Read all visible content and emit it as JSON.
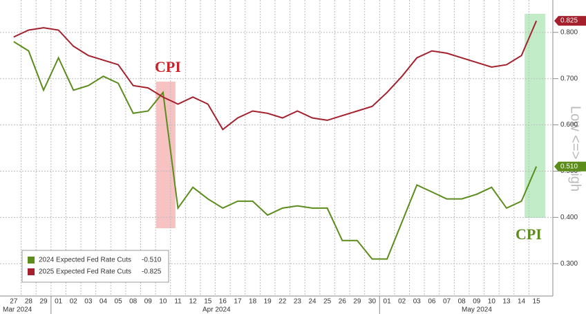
{
  "chart_data": {
    "type": "line",
    "categories": [
      "27",
      "28",
      "29",
      "01",
      "02",
      "03",
      "04",
      "05",
      "08",
      "09",
      "10",
      "11",
      "12",
      "15",
      "16",
      "17",
      "18",
      "19",
      "22",
      "23",
      "24",
      "25",
      "26",
      "29",
      "30",
      "01",
      "02",
      "03",
      "06",
      "07",
      "08",
      "09",
      "10",
      "13",
      "14",
      "15"
    ],
    "months": [
      "Mar 2024",
      "Apr 2024",
      "May 2024"
    ],
    "series": [
      {
        "name": "2024 Expected Fed Rate Cuts",
        "legend_value": "-0.510",
        "value_label": "0.510",
        "color": "#5b8c1c",
        "values": [
          0.78,
          0.76,
          0.675,
          0.745,
          0.675,
          0.685,
          0.705,
          0.69,
          0.625,
          0.63,
          0.67,
          0.42,
          0.465,
          0.44,
          0.42,
          0.435,
          0.435,
          0.405,
          0.42,
          0.425,
          0.42,
          0.42,
          0.35,
          0.35,
          0.31,
          0.31,
          0.39,
          0.47,
          0.455,
          0.44,
          0.44,
          0.45,
          0.465,
          0.42,
          0.435,
          0.51
        ]
      },
      {
        "name": "2025 Expected Fed Rate Cuts",
        "legend_value": "-0.825",
        "value_label": "0.825",
        "color": "#a3202c",
        "values": [
          0.79,
          0.805,
          0.81,
          0.805,
          0.77,
          0.75,
          0.74,
          0.73,
          0.685,
          0.68,
          0.66,
          0.645,
          0.66,
          0.645,
          0.59,
          0.615,
          0.63,
          0.625,
          0.615,
          0.63,
          0.615,
          0.61,
          0.62,
          0.63,
          0.64,
          0.67,
          0.705,
          0.745,
          0.76,
          0.755,
          0.745,
          0.735,
          0.725,
          0.73,
          0.75,
          0.825
        ]
      }
    ],
    "ylim": [
      0.23,
      0.87
    ],
    "yticks": [
      {
        "value": 0.3,
        "label": "0.300"
      },
      {
        "value": 0.4,
        "label": "0.400"
      },
      {
        "value": 0.5,
        "label": "0.500"
      },
      {
        "value": 0.6,
        "label": "0.600"
      },
      {
        "value": 0.7,
        "label": "0.700"
      },
      {
        "value": 0.8,
        "label": "0.800"
      }
    ],
    "y_axis_label": "Low <=> High",
    "annotations": [
      {
        "text": "CPI",
        "color": "#c8232c"
      },
      {
        "text": "CPI",
        "color": "#5b8c1c"
      }
    ],
    "grid": true
  }
}
